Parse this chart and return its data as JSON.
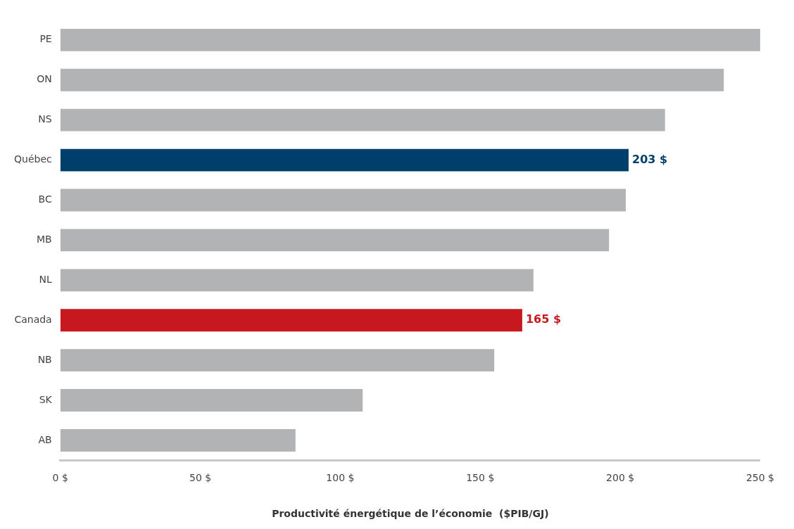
{
  "chart_data": {
    "type": "bar",
    "orientation": "horizontal",
    "xlabel": "Productivité énergétique de l’économie  ($PIB/GJ)",
    "categories": [
      "PE",
      "ON",
      "NS",
      "Québec",
      "BC",
      "MB",
      "NL",
      "Canada",
      "NB",
      "SK",
      "AB"
    ],
    "values": [
      250,
      237,
      216,
      203,
      202,
      196,
      169,
      165,
      155,
      108,
      84
    ],
    "colors": [
      "#b2b3b5",
      "#b2b3b5",
      "#b2b3b5",
      "#003e6b",
      "#b2b3b5",
      "#b2b3b5",
      "#b2b3b5",
      "#c8181f",
      "#b2b3b5",
      "#b2b3b5",
      "#b2b3b5"
    ],
    "value_labels": [
      null,
      null,
      null,
      "203 $",
      null,
      null,
      null,
      "165 $",
      null,
      null,
      null
    ],
    "xlim": [
      0,
      250
    ],
    "xticks": [
      {
        "value": 0,
        "label": "0 $"
      },
      {
        "value": 50,
        "label": "50 $"
      },
      {
        "value": 100,
        "label": "100 $"
      },
      {
        "value": 150,
        "label": "150 $"
      },
      {
        "value": 200,
        "label": "200 $"
      },
      {
        "value": 250,
        "label": "250 $"
      }
    ],
    "grid": false,
    "legend": false
  }
}
